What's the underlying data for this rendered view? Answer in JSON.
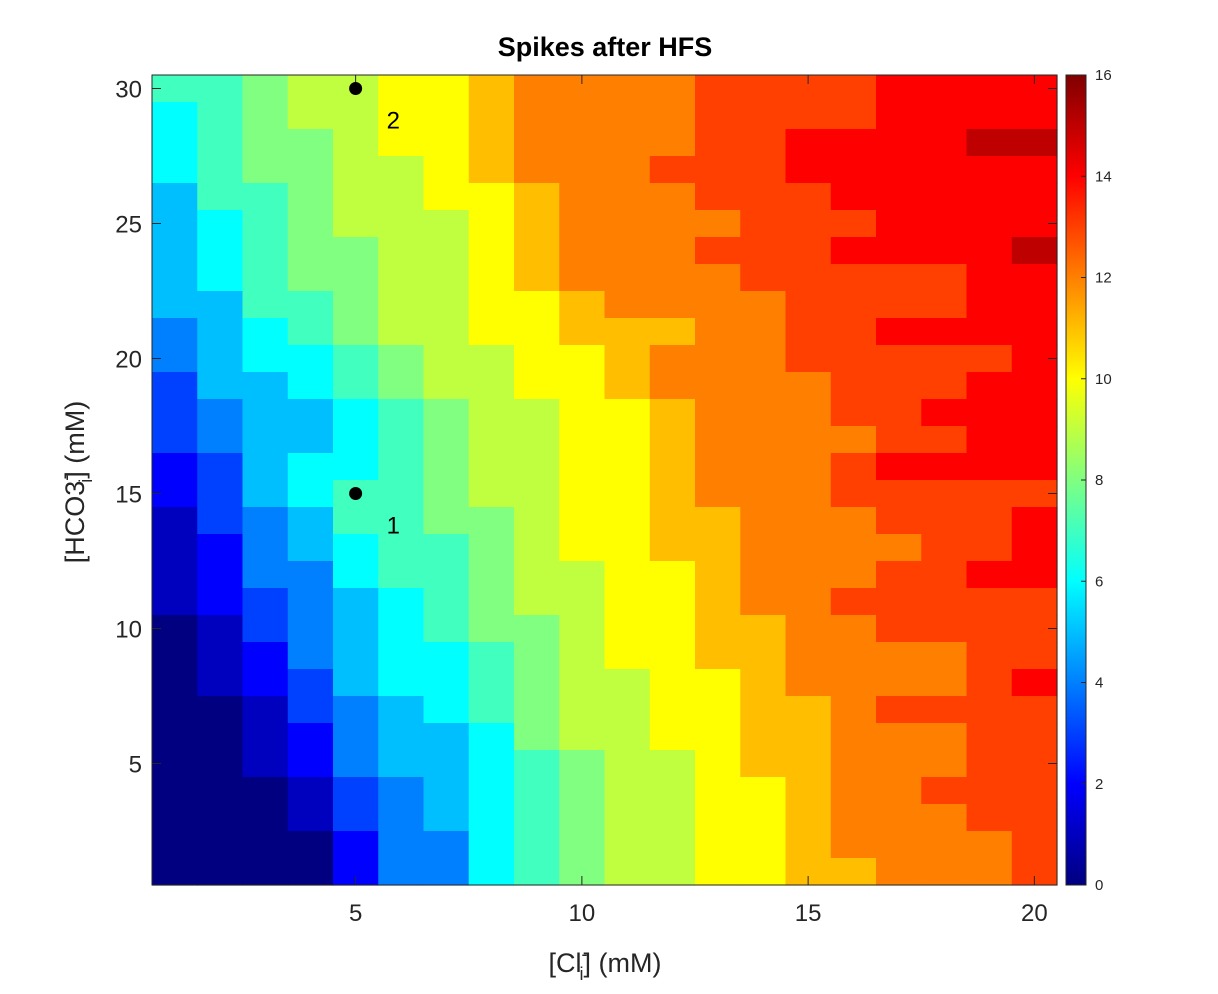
{
  "chart_data": {
    "type": "heatmap",
    "title": "Spikes after HFS",
    "x_label": {
      "open": "[Cl",
      "sup": "-",
      "sub": "i",
      "close": "] (mM)"
    },
    "y_label": {
      "open": "[HCO3",
      "sup": "-",
      "sub": "i",
      "close": "] (mM)"
    },
    "x": [
      1,
      2,
      3,
      4,
      5,
      6,
      7,
      8,
      9,
      10,
      11,
      12,
      13,
      14,
      15,
      16,
      17,
      18,
      19,
      20
    ],
    "y": [
      1,
      2,
      3,
      4,
      5,
      6,
      7,
      8,
      9,
      10,
      11,
      12,
      13,
      14,
      15,
      16,
      17,
      18,
      19,
      20,
      21,
      22,
      23,
      24,
      25,
      26,
      27,
      28,
      29,
      30
    ],
    "x_ticks": [
      5,
      10,
      15,
      20
    ],
    "y_ticks": [
      5,
      10,
      15,
      20,
      25,
      30
    ],
    "xlim": [
      0.5,
      20.5
    ],
    "ylim": [
      0.5,
      30.5
    ],
    "colorbar": {
      "colormap": "jet",
      "clim": [
        0,
        16
      ],
      "ticks": [
        0,
        2,
        4,
        6,
        8,
        10,
        12,
        14,
        16
      ]
    },
    "z_rows_top_to_bottom": [
      [
        7,
        7,
        8,
        9,
        9,
        10,
        10,
        11,
        12,
        12,
        12,
        12,
        13,
        13,
        13,
        13,
        14,
        14,
        14,
        14
      ],
      [
        6,
        7,
        8,
        9,
        9,
        10,
        10,
        11,
        12,
        12,
        12,
        12,
        13,
        13,
        13,
        13,
        14,
        14,
        14,
        14
      ],
      [
        6,
        7,
        8,
        8,
        9,
        10,
        10,
        11,
        12,
        12,
        12,
        12,
        13,
        13,
        14,
        14,
        14,
        14,
        15,
        15
      ],
      [
        6,
        7,
        8,
        8,
        9,
        9,
        10,
        11,
        12,
        12,
        12,
        13,
        13,
        13,
        14,
        14,
        14,
        14,
        14,
        14
      ],
      [
        5,
        7,
        7,
        8,
        9,
        9,
        10,
        10,
        11,
        12,
        12,
        12,
        13,
        13,
        13,
        14,
        14,
        14,
        14,
        14
      ],
      [
        5,
        6,
        7,
        8,
        9,
        9,
        9,
        10,
        11,
        12,
        12,
        12,
        12,
        13,
        13,
        13,
        14,
        14,
        14,
        14
      ],
      [
        5,
        6,
        7,
        8,
        8,
        9,
        9,
        10,
        11,
        12,
        12,
        12,
        13,
        13,
        13,
        14,
        14,
        14,
        14,
        15
      ],
      [
        5,
        6,
        7,
        8,
        8,
        9,
        9,
        10,
        11,
        12,
        12,
        12,
        12,
        13,
        13,
        13,
        13,
        13,
        14,
        14
      ],
      [
        5,
        5,
        7,
        7,
        8,
        9,
        9,
        10,
        10,
        11,
        12,
        12,
        12,
        12,
        13,
        13,
        13,
        13,
        14,
        14
      ],
      [
        4,
        5,
        6,
        7,
        8,
        9,
        9,
        10,
        10,
        11,
        11,
        11,
        12,
        12,
        13,
        13,
        14,
        14,
        14,
        14
      ],
      [
        4,
        5,
        6,
        6,
        7,
        8,
        9,
        9,
        10,
        10,
        11,
        12,
        12,
        12,
        13,
        13,
        13,
        13,
        13,
        14
      ],
      [
        3,
        5,
        5,
        6,
        7,
        8,
        9,
        9,
        10,
        10,
        11,
        12,
        12,
        12,
        12,
        13,
        13,
        13,
        14,
        14
      ],
      [
        3,
        4,
        5,
        5,
        6,
        7,
        8,
        9,
        9,
        10,
        10,
        11,
        12,
        12,
        12,
        13,
        13,
        14,
        14,
        14
      ],
      [
        3,
        4,
        5,
        5,
        6,
        7,
        8,
        9,
        9,
        10,
        10,
        11,
        12,
        12,
        12,
        12,
        13,
        13,
        14,
        14
      ],
      [
        2,
        3,
        5,
        6,
        6,
        7,
        8,
        9,
        9,
        10,
        10,
        11,
        12,
        12,
        12,
        13,
        14,
        14,
        14,
        14
      ],
      [
        2,
        3,
        5,
        6,
        7,
        7,
        8,
        9,
        9,
        10,
        10,
        11,
        12,
        12,
        12,
        13,
        13,
        13,
        13,
        13
      ],
      [
        1,
        3,
        4,
        5,
        7,
        7,
        8,
        8,
        9,
        10,
        10,
        11,
        11,
        12,
        12,
        12,
        13,
        13,
        13,
        14
      ],
      [
        1,
        2,
        4,
        5,
        6,
        7,
        7,
        8,
        9,
        10,
        10,
        11,
        11,
        12,
        12,
        12,
        12,
        13,
        13,
        14
      ],
      [
        1,
        2,
        4,
        4,
        6,
        7,
        7,
        8,
        9,
        9,
        10,
        10,
        11,
        12,
        12,
        12,
        13,
        13,
        14,
        14
      ],
      [
        1,
        2,
        3,
        4,
        5,
        6,
        7,
        8,
        9,
        9,
        10,
        10,
        11,
        12,
        12,
        13,
        13,
        13,
        13,
        13
      ],
      [
        0,
        1,
        3,
        4,
        5,
        6,
        7,
        8,
        8,
        9,
        10,
        10,
        11,
        11,
        12,
        12,
        13,
        13,
        13,
        13
      ],
      [
        0,
        1,
        2,
        4,
        5,
        6,
        6,
        7,
        8,
        9,
        10,
        10,
        11,
        11,
        12,
        12,
        12,
        12,
        13,
        13
      ],
      [
        0,
        1,
        2,
        3,
        5,
        6,
        6,
        7,
        8,
        9,
        9,
        10,
        10,
        11,
        12,
        12,
        12,
        12,
        13,
        14
      ],
      [
        0,
        0,
        1,
        3,
        4,
        5,
        6,
        7,
        8,
        9,
        9,
        10,
        10,
        11,
        11,
        12,
        13,
        13,
        13,
        13
      ],
      [
        0,
        0,
        1,
        2,
        4,
        5,
        5,
        6,
        8,
        9,
        9,
        10,
        10,
        11,
        11,
        12,
        12,
        12,
        13,
        13
      ],
      [
        0,
        0,
        1,
        2,
        4,
        5,
        5,
        6,
        7,
        8,
        9,
        9,
        10,
        11,
        11,
        12,
        12,
        12,
        13,
        13
      ],
      [
        0,
        0,
        0,
        1,
        3,
        4,
        5,
        6,
        7,
        8,
        9,
        9,
        10,
        10,
        11,
        12,
        12,
        13,
        13,
        13
      ],
      [
        0,
        0,
        0,
        1,
        3,
        4,
        5,
        6,
        7,
        8,
        9,
        9,
        10,
        10,
        11,
        12,
        12,
        12,
        13,
        13
      ],
      [
        0,
        0,
        0,
        0,
        2,
        4,
        4,
        6,
        7,
        8,
        9,
        9,
        10,
        10,
        11,
        12,
        12,
        12,
        12,
        13
      ],
      [
        0,
        0,
        0,
        0,
        2,
        4,
        4,
        6,
        7,
        8,
        9,
        9,
        10,
        10,
        11,
        11,
        12,
        12,
        12,
        13
      ]
    ],
    "annotations": [
      {
        "label": "1",
        "x": 5,
        "y": 15
      },
      {
        "label": "2",
        "x": 5,
        "y": 30
      }
    ]
  }
}
